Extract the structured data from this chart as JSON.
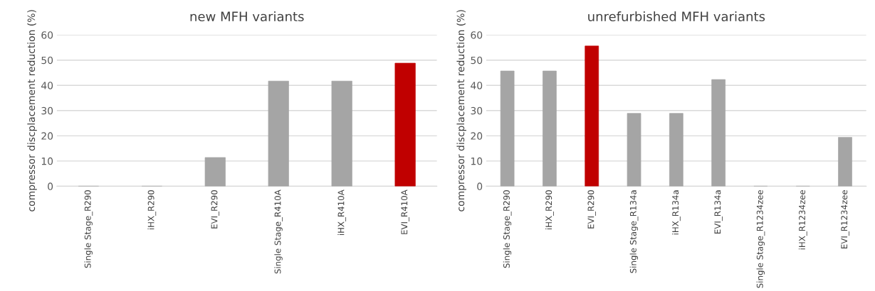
{
  "chart_data": [
    {
      "type": "bar",
      "title": "new MFH variants",
      "ylabel": "compressor discplacement reduction (%)",
      "categories": [
        "Single Stage_R290",
        "iHX_R290",
        "EVI_R290",
        "Single Stage_R410A",
        "iHX_R410A",
        "EVI_R410A"
      ],
      "values": [
        0,
        0,
        11.4,
        41.7,
        41.7,
        48.8
      ],
      "colors": [
        "#a5a5a5",
        "#a5a5a5",
        "#a5a5a5",
        "#a5a5a5",
        "#a5a5a5",
        "#c00000"
      ],
      "ylim": [
        0,
        60
      ],
      "yticks": [
        0,
        10,
        20,
        30,
        40,
        50,
        60
      ],
      "grid": "y",
      "legend": false
    },
    {
      "type": "bar",
      "title": "unrefurbished MFH variants",
      "ylabel": "compressor discplacement reduction (%)",
      "categories": [
        "Single Stage_R290",
        "iHX_R290",
        "EVI_R290",
        "Single Stage_R134a",
        "iHX_R134a",
        "EVI_R134a",
        "Single Stage_R1234zee",
        "iHX_R1234zee",
        "EVI_R1234zee"
      ],
      "values": [
        45.7,
        45.7,
        55.6,
        28.9,
        28.9,
        42.3,
        0,
        0,
        19.4
      ],
      "colors": [
        "#a5a5a5",
        "#a5a5a5",
        "#c00000",
        "#a5a5a5",
        "#a5a5a5",
        "#a5a5a5",
        "#a5a5a5",
        "#a5a5a5",
        "#a5a5a5"
      ],
      "ylim": [
        0,
        60
      ],
      "yticks": [
        0,
        10,
        20,
        30,
        40,
        50,
        60
      ],
      "grid": "y",
      "legend": false
    }
  ]
}
